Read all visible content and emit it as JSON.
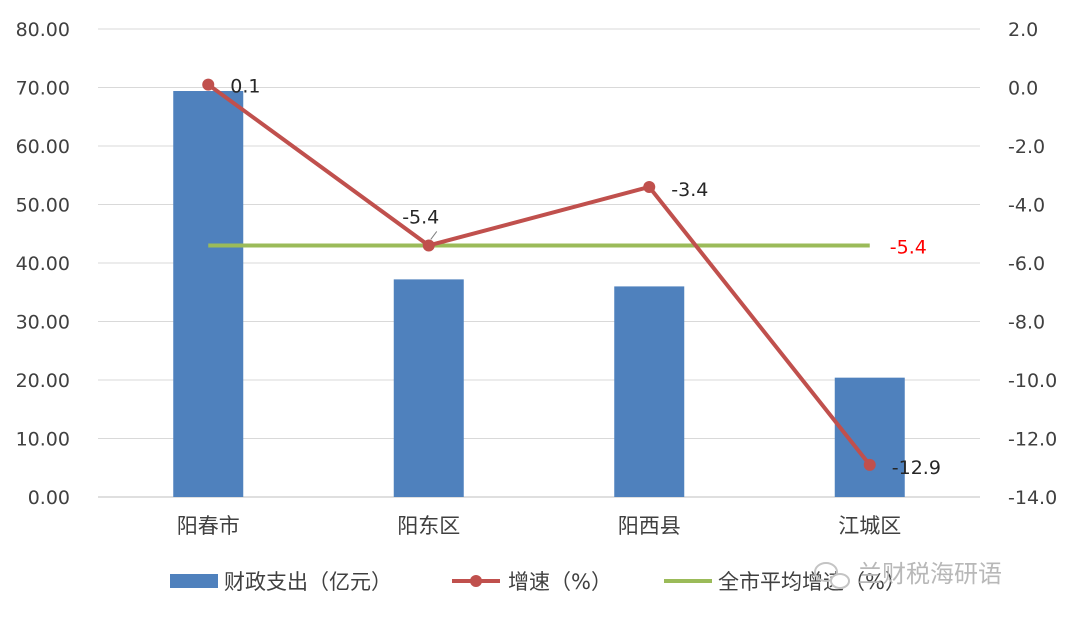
{
  "chart_data": {
    "type": "bar",
    "categories": [
      "阳春市",
      "阳东区",
      "阳西县",
      "江城区"
    ],
    "series": [
      {
        "name": "财政支出（亿元）",
        "type": "bar",
        "axis": "left",
        "values": [
          69.4,
          37.2,
          36.0,
          20.4
        ],
        "color": "#4f81bd"
      },
      {
        "name": "增速（%）",
        "type": "line",
        "axis": "right",
        "values": [
          0.1,
          -5.4,
          -3.4,
          -12.9
        ],
        "labels": [
          "0.1",
          "-5.4",
          "-3.4",
          "-12.9"
        ],
        "color": "#c0504d"
      },
      {
        "name": "全市平均增速（%）",
        "type": "line",
        "axis": "right",
        "values": [
          -5.4,
          -5.4,
          -5.4,
          -5.4
        ],
        "label": "-5.4",
        "label_color": "#ff0000",
        "color": "#9bbb59"
      }
    ],
    "y_left": {
      "min": 0,
      "max": 80,
      "step": 10,
      "ticks": [
        "0.00",
        "10.00",
        "20.00",
        "30.00",
        "40.00",
        "50.00",
        "60.00",
        "70.00",
        "80.00"
      ]
    },
    "y_right": {
      "min": -14,
      "max": 2,
      "step": 2,
      "ticks": [
        "-14.0",
        "-12.0",
        "-10.0",
        "-8.0",
        "-6.0",
        "-4.0",
        "-2.0",
        "0.0",
        "2.0"
      ]
    },
    "grid": true,
    "legend_position": "bottom",
    "title": "",
    "xlabel": "",
    "ylabel": ""
  },
  "watermark": {
    "text": "兰财税海研语",
    "icon": "wechat-icon"
  }
}
